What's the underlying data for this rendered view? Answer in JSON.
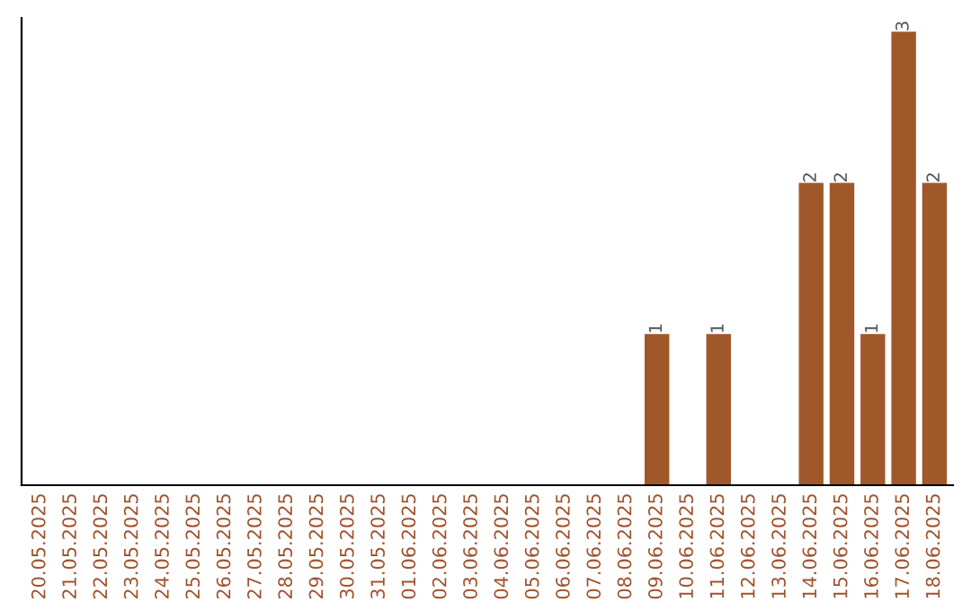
{
  "chart_data": {
    "type": "bar",
    "categories": [
      "20.05.2025",
      "21.05.2025",
      "22.05.2025",
      "23.05.2025",
      "24.05.2025",
      "25.05.2025",
      "26.05.2025",
      "27.05.2025",
      "28.05.2025",
      "29.05.2025",
      "30.05.2025",
      "31.05.2025",
      "01.06.2025",
      "02.06.2025",
      "03.06.2025",
      "04.06.2025",
      "05.06.2025",
      "06.06.2025",
      "07.06.2025",
      "08.06.2025",
      "09.06.2025",
      "10.06.2025",
      "11.06.2025",
      "12.06.2025",
      "13.06.2025",
      "14.06.2025",
      "15.06.2025",
      "16.06.2025",
      "17.06.2025",
      "18.06.2025"
    ],
    "values": [
      null,
      null,
      null,
      null,
      null,
      null,
      null,
      null,
      null,
      null,
      null,
      null,
      null,
      null,
      null,
      null,
      null,
      null,
      null,
      null,
      1,
      null,
      1,
      null,
      null,
      2,
      2,
      1,
      3,
      2
    ],
    "data_labels": true,
    "color": "#a0582a"
  }
}
